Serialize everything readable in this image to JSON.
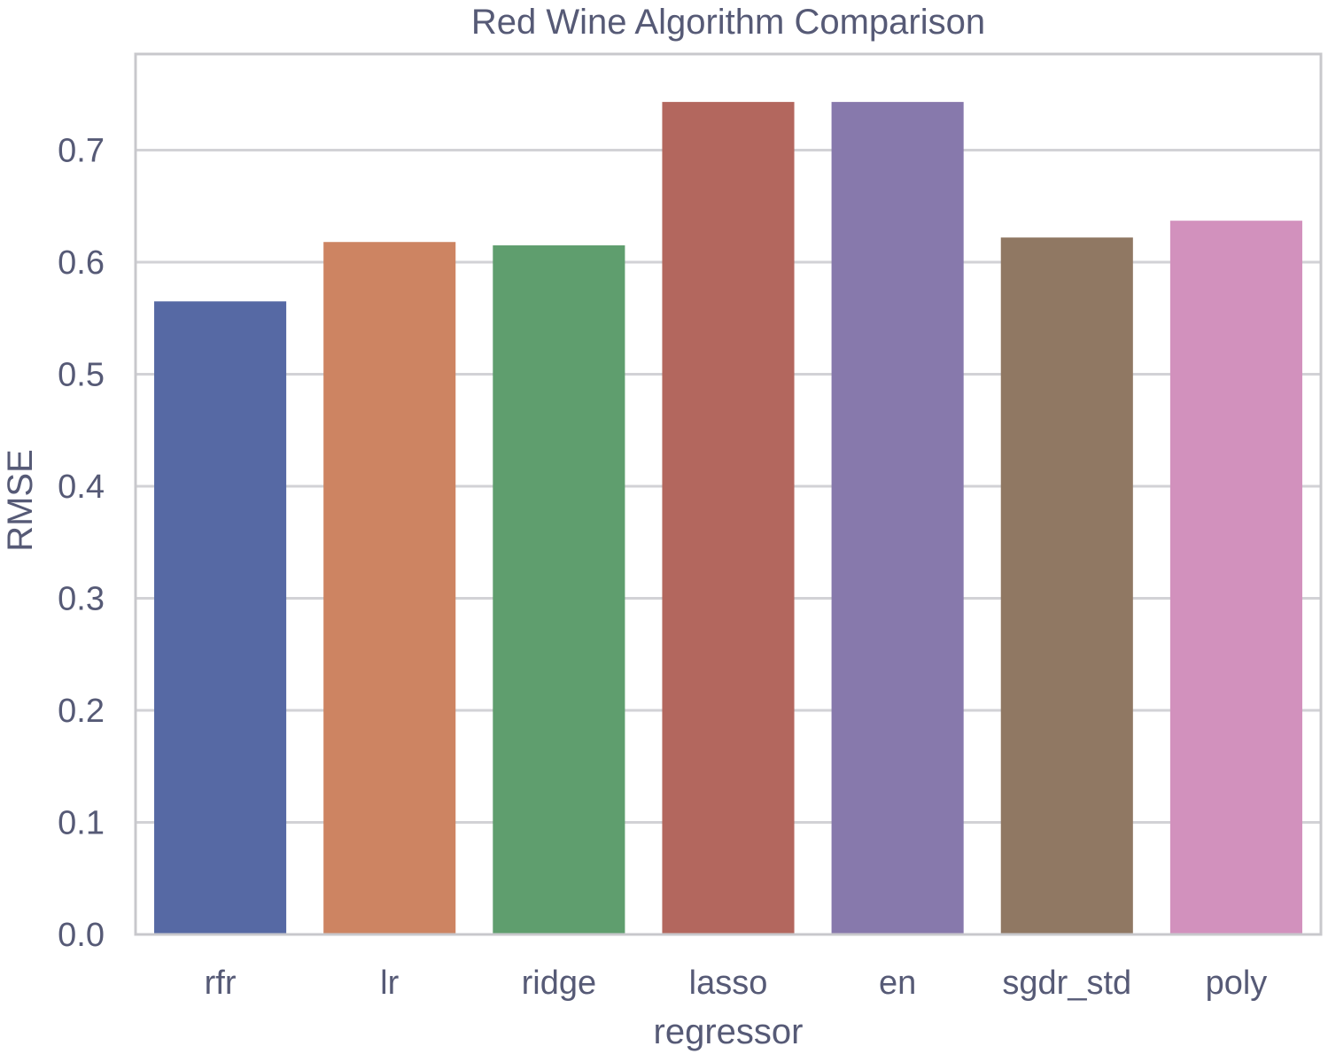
{
  "chart_data": {
    "type": "bar",
    "title": "Red Wine Algorithm Comparison",
    "xlabel": "regressor",
    "ylabel": "RMSE",
    "categories": [
      "rfr",
      "lr",
      "ridge",
      "lasso",
      "en",
      "sgdr_std",
      "poly"
    ],
    "values": [
      0.565,
      0.618,
      0.615,
      0.743,
      0.743,
      0.622,
      0.637
    ],
    "colors": [
      "#5669a4",
      "#cd8462",
      "#5f9e6e",
      "#b3675e",
      "#8779ac",
      "#907863",
      "#d291bd"
    ],
    "ylim": [
      0,
      0.78
    ],
    "yticks": [
      "0.0",
      "0.1",
      "0.2",
      "0.3",
      "0.4",
      "0.5",
      "0.6",
      "0.7"
    ],
    "grid": true,
    "legend": "none"
  }
}
